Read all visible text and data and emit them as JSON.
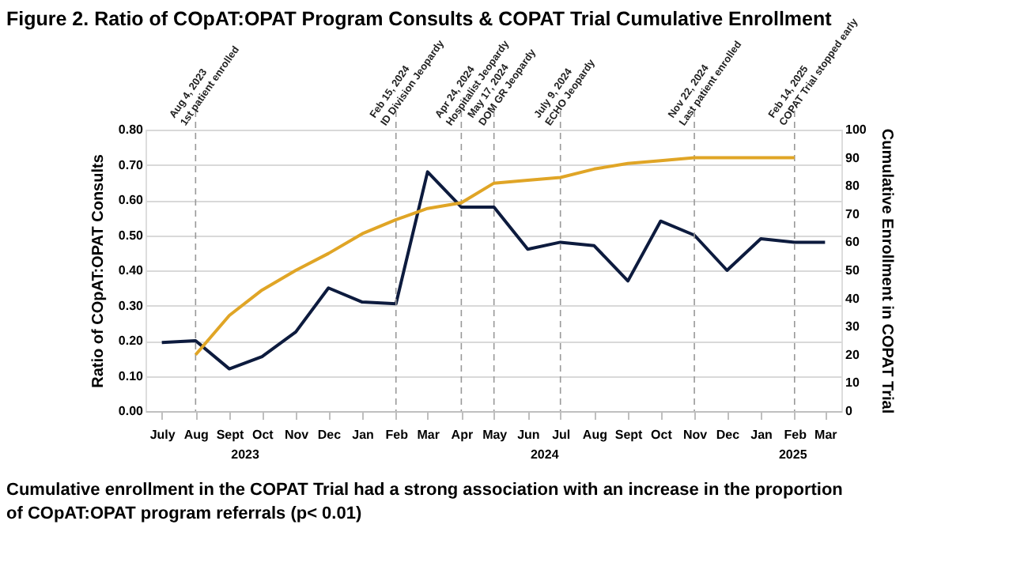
{
  "chart_data": {
    "type": "line",
    "title": "Figure 2. Ratio of COpAT:OPAT Program Consults & COPAT Trial Cumulative Enrollment",
    "ylabel": "Ratio of COpAT:OPAT Consults",
    "y2label": "Cumulative Enrollment in COPAT Trial",
    "x": [
      "2023-07",
      "2023-08",
      "2023-09",
      "2023-10",
      "2023-11",
      "2023-12",
      "2024-01",
      "2024-02",
      "2024-03",
      "2024-04",
      "2024-05",
      "2024-06",
      "2024-07",
      "2024-08",
      "2024-09",
      "2024-10",
      "2024-11",
      "2024-12",
      "2025-01",
      "2025-02",
      "2025-03"
    ],
    "series": [
      {
        "color": "#0d1b3e",
        "values": [
          0.195,
          0.2,
          0.12,
          0.155,
          0.225,
          0.35,
          0.31,
          0.305,
          0.68,
          0.58,
          0.58,
          0.46,
          0.48,
          0.47,
          0.37,
          0.54,
          0.5,
          0.4,
          0.49,
          0.48,
          0.48
        ]
      },
      {
        "color": "#e0a526",
        "axis": "y2",
        "values": [
          null,
          20,
          34,
          43,
          50,
          56,
          63,
          68,
          72,
          74,
          81,
          82,
          83,
          86,
          88,
          89,
          90,
          90,
          90,
          90,
          null
        ]
      }
    ],
    "xlim": [
      "2023-06-16",
      "2025-03-16"
    ],
    "xticks": [
      {
        "value": "2023-07",
        "label": "July"
      },
      {
        "value": "2023-08",
        "label": "Aug"
      },
      {
        "value": "2023-09",
        "label": "Sept"
      },
      {
        "value": "2023-10",
        "label": "Oct"
      },
      {
        "value": "2023-11",
        "label": "Nov"
      },
      {
        "value": "2023-12",
        "label": "Dec"
      },
      {
        "value": "2024-01",
        "label": "Jan"
      },
      {
        "value": "2024-02",
        "label": "Feb"
      },
      {
        "value": "2024-03",
        "label": "Mar"
      },
      {
        "value": "2024-04",
        "label": "Apr"
      },
      {
        "value": "2024-05",
        "label": "May"
      },
      {
        "value": "2024-06",
        "label": "Jun"
      },
      {
        "value": "2024-07",
        "label": "Jul"
      },
      {
        "value": "2024-08",
        "label": "Aug"
      },
      {
        "value": "2024-09",
        "label": "Sept"
      },
      {
        "value": "2024-10",
        "label": "Oct"
      },
      {
        "value": "2024-11",
        "label": "Nov"
      },
      {
        "value": "2024-12",
        "label": "Dec"
      },
      {
        "value": "2025-01",
        "label": "Jan"
      },
      {
        "value": "2025-02",
        "label": "Feb"
      },
      {
        "value": "2025-03",
        "label": "Mar"
      }
    ],
    "ylim": [
      0,
      0.8
    ],
    "yticks": [
      {
        "value": 0,
        "label": "0.00"
      },
      {
        "value": 0.1,
        "label": "0.10"
      },
      {
        "value": 0.2,
        "label": "0.20"
      },
      {
        "value": 0.3,
        "label": "0.30"
      },
      {
        "value": 0.4,
        "label": "0.40"
      },
      {
        "value": 0.5,
        "label": "0.50"
      },
      {
        "value": 0.6,
        "label": "0.60"
      },
      {
        "value": 0.7,
        "label": "0.70"
      },
      {
        "value": 0.8,
        "label": "0.80"
      }
    ],
    "y2lim": [
      0,
      100
    ],
    "y2ticks": [
      0,
      10,
      20,
      30,
      40,
      50,
      60,
      70,
      80,
      90,
      100
    ],
    "grid": "y",
    "line_style": "solid",
    "marker": "none",
    "ref_lines": [
      {
        "axis": "x",
        "value": "2023-08",
        "label": "Aug 4, 2023\n1st patient enrolled",
        "color": "#999999",
        "line_style": "dashed"
      },
      {
        "axis": "x",
        "value": "2024-02",
        "label": "Feb 15, 2024\nID Division Jeopardy",
        "color": "#999999",
        "line_style": "dashed"
      },
      {
        "axis": "x",
        "value": "2024-04",
        "label": "Apr 24, 2024\nHospitalist Jeopardy",
        "color": "#999999",
        "line_style": "dashed"
      },
      {
        "axis": "x",
        "value": "2024-05",
        "label": "May 17, 2024\nDOM GR Jeopardy",
        "color": "#999999",
        "line_style": "dashed"
      },
      {
        "axis": "x",
        "value": "2024-07",
        "label": "July 9, 2024\nECHO Jeopardy",
        "color": "#999999",
        "line_style": "dashed"
      },
      {
        "axis": "x",
        "value": "2024-11",
        "label": "Nov 22, 2024\nLast patient enrolled",
        "color": "#999999",
        "line_style": "dashed"
      },
      {
        "axis": "x",
        "value": "2025-02",
        "label": "Feb 14, 2025\nCOPAT Trial stopped early",
        "color": "#999999",
        "line_style": "dashed"
      }
    ],
    "annotations": [
      "2023",
      "2024",
      "2025",
      "Cumulative enrollment in the COPAT Trial had a strong association with an increase in the proportion of COpAT:OPAT program referrals (p< 0.01)"
    ]
  }
}
